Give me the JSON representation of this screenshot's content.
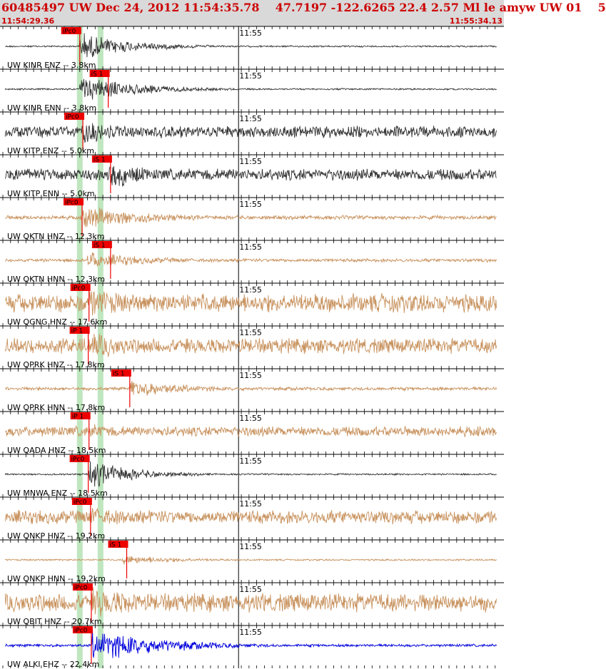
{
  "header": {
    "title": "60485497 UW Dec 24, 2012 11:54:35.78    47.7197 -122.6265 22.4 2.57 Ml le amyw UW 01    5",
    "time_start": "11:54:29.36",
    "time_end": "11:55:34.13"
  },
  "colors": {
    "header_bg": "#d9d9d9",
    "header_text": "#cc0000",
    "pick": "#ee0000",
    "highlight": "#bfe6bf",
    "trace_black": "#333333",
    "trace_tan": "#c8925e",
    "trace_blue": "#0000dd"
  },
  "chart_data": {
    "type": "line",
    "title": "60485497 UW Dec 24, 2012 11:54:35.78    47.7197 -122.6265 22.4 2.57 Ml le amyw UW 01    5",
    "x_range": [
      "11:54:29.36",
      "11:55:34.13"
    ],
    "minute_label": "11:55",
    "minute_time_s": 30.64,
    "duration_s": 64.77,
    "highlight_bands_s": [
      10.0,
      12.7
    ],
    "traces": [
      {
        "label": "UW KINR ENZ -- 3.8km",
        "color": "black",
        "pick": "iPc0",
        "pick_s": 10.0,
        "onset_s": 10.0,
        "noise": 0.05,
        "amp": 0.85,
        "decay": 7
      },
      {
        "label": "UW KINR ENN -- 3.8km",
        "color": "black",
        "pick": "iS 1",
        "pick_s": 13.7,
        "onset_s": 10.0,
        "noise": 0.05,
        "amp": 0.8,
        "decay": 8
      },
      {
        "label": "UW KITP ENZ -- 5.0km",
        "color": "black",
        "pick": "iPc0",
        "pick_s": 10.4,
        "onset_s": 10.4,
        "noise": 0.35,
        "amp": 0.8,
        "decay": 6
      },
      {
        "label": "UW KITP ENN -- 5.0km",
        "color": "black",
        "pick": "iS 1",
        "pick_s": 14.0,
        "onset_s": 13.8,
        "noise": 0.35,
        "amp": 0.9,
        "decay": 6
      },
      {
        "label": "UW QKTN HNZ -- 12.3km",
        "color": "tan",
        "pick": "iPc0",
        "pick_s": 10.3,
        "onset_s": 10.4,
        "noise": 0.12,
        "amp": 0.75,
        "decay": 9
      },
      {
        "label": "UW QKTN HNN -- 12.3km",
        "color": "tan",
        "pick": "iS 1",
        "pick_s": 14.0,
        "onset_s": 11.0,
        "noise": 0.1,
        "amp": 0.5,
        "decay": 9
      },
      {
        "label": "UW QGNG HNZ -- 17.6km",
        "color": "tan",
        "pick": "iPc0",
        "pick_s": 11.2,
        "onset_s": 11.2,
        "noise": 0.55,
        "amp": 0.9,
        "decay": 10
      },
      {
        "label": "UW QPRK HNZ -- 17.8km",
        "color": "tan",
        "pick": "iP 1",
        "pick_s": 11.1,
        "onset_s": 11.2,
        "noise": 0.45,
        "amp": 0.85,
        "decay": 9
      },
      {
        "label": "UW QPRK HNN -- 17.8km",
        "color": "tan",
        "pick": "iS 1",
        "pick_s": 16.5,
        "onset_s": 16.5,
        "noise": 0.1,
        "amp": 0.55,
        "decay": 8
      },
      {
        "label": "UW QADA HNZ -- 18.5km",
        "color": "tan",
        "pick": "iP 1",
        "pick_s": 11.2,
        "onset_s": 11.2,
        "noise": 0.3,
        "amp": 0.45,
        "decay": 9
      },
      {
        "label": "UW MNWA ENZ -- 18.5km",
        "color": "black",
        "pick": "iPc0",
        "pick_s": 11.1,
        "onset_s": 11.1,
        "noise": 0.05,
        "amp": 0.9,
        "decay": 6
      },
      {
        "label": "UW QNKP HNZ -- 19.2km",
        "color": "tan",
        "pick": "iPc0",
        "pick_s": 11.4,
        "onset_s": 11.4,
        "noise": 0.4,
        "amp": 0.6,
        "decay": 10
      },
      {
        "label": "UW QNKP HNN -- 19.2km",
        "color": "tan",
        "pick": "iS 1",
        "pick_s": 16.1,
        "onset_s": 15.5,
        "noise": 0.05,
        "amp": 0.3,
        "decay": 8
      },
      {
        "label": "UW QBIT HNZ -- 20.7km",
        "color": "tan",
        "pick": "iPc0",
        "pick_s": 11.5,
        "onset_s": 11.6,
        "noise": 0.55,
        "amp": 0.95,
        "decay": 12
      },
      {
        "label": "UW ALKI EHZ -- 22.4km",
        "color": "blue",
        "pick": "iPc0",
        "pick_s": 11.5,
        "onset_s": 11.6,
        "noise": 0.08,
        "amp": 0.95,
        "decay": 10
      }
    ]
  }
}
